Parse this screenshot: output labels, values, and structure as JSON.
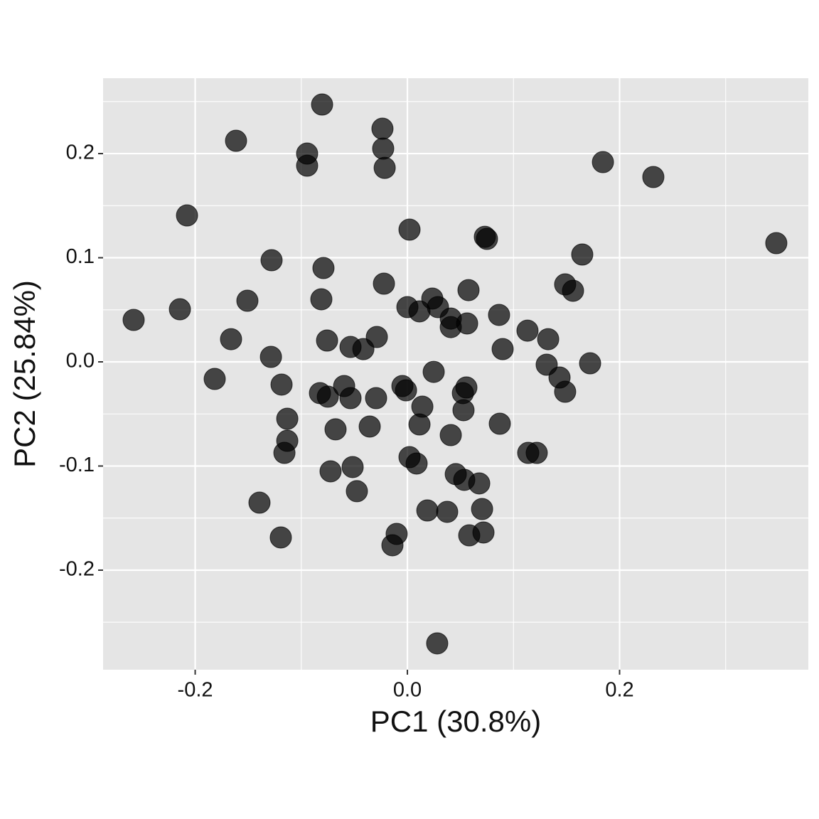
{
  "chart_data": {
    "type": "scatter",
    "x_label": "PC1 (30.8%)",
    "y_label": "PC2 (25.84%)",
    "x": [
      -0.0804,
      -0.1615,
      -0.0945,
      -0.0945,
      -0.0235,
      -0.0228,
      -0.0214,
      0.1843,
      0.2318,
      0.3477,
      -0.2077,
      0.002,
      0.073,
      0.075,
      0.1648,
      -0.128,
      -0.0791,
      -0.0221,
      0.1487,
      0.1561,
      0.0576,
      -0.1508,
      -0.0811,
      0.0235,
      0.0288,
      0.0,
      0.0114,
      0.0409,
      0.0409,
      0.0563,
      0.0864,
      -0.258,
      -0.2144,
      -0.1662,
      -0.0757,
      -0.0288,
      -0.0536,
      -0.0415,
      0.1132,
      0.1327,
      0.0898,
      -0.1286,
      -0.1816,
      0.0248,
      0.1722,
      0.1313,
      0.1434,
      0.1487,
      -0.1186,
      -0.0596,
      -0.0824,
      -0.075,
      -0.0536,
      -0.0295,
      -0.0047,
      -0.0013,
      0.0556,
      0.0523,
      0.0141,
      0.0529,
      -0.1132,
      -0.0677,
      -0.0355,
      0.0114,
      0.0409,
      0.0871,
      -0.1132,
      -0.1159,
      0.002,
      0.0087,
      0.1139,
      0.1219,
      -0.0724,
      -0.0516,
      -0.0476,
      0.0456,
      0.0536,
      0.0677,
      -0.1394,
      0.0188,
      0.0375,
      0.0704,
      -0.1193,
      -0.0101,
      -0.0141,
      0.0583,
      0.0717,
      0.0281
    ],
    "y": [
      0.2471,
      0.2123,
      0.2,
      0.1884,
      0.2239,
      0.2048,
      0.1863,
      0.1918,
      0.1775,
      0.114,
      0.1406,
      0.127,
      0.1201,
      0.1181,
      0.1031,
      0.0976,
      0.0901,
      0.0751,
      0.0744,
      0.0683,
      0.0689,
      0.0587,
      0.0601,
      0.0608,
      0.0526,
      0.0526,
      0.0485,
      0.0416,
      0.0334,
      0.0369,
      0.0451,
      0.0403,
      0.0505,
      0.0218,
      0.0205,
      0.0239,
      0.0143,
      0.0123,
      0.03,
      0.0218,
      0.0123,
      0.0048,
      -0.0164,
      -0.0096,
      -0.0014,
      -0.0027,
      -0.015,
      -0.0287,
      -0.0218,
      -0.0232,
      -0.03,
      -0.0334,
      -0.0348,
      -0.0348,
      -0.0232,
      -0.0273,
      -0.0246,
      -0.03,
      -0.043,
      -0.0464,
      -0.0546,
      -0.0648,
      -0.0621,
      -0.0601,
      -0.0703,
      -0.0594,
      -0.0758,
      -0.0874,
      -0.0915,
      -0.0976,
      -0.0874,
      -0.0874,
      -0.1051,
      -0.101,
      -0.1242,
      -0.1078,
      -0.1133,
      -0.1167,
      -0.1352,
      -0.1427,
      -0.144,
      -0.1413,
      -0.1686,
      -0.1652,
      -0.1761,
      -0.1666,
      -0.1638,
      -0.2703
    ],
    "color": "#000000",
    "opacity": 0.7,
    "xlim": [
      -0.2868,
      0.3779
    ],
    "ylim": [
      -0.2956,
      0.2724
    ],
    "xticks": [
      -0.2,
      {
        "value": 0,
        "label": "0.0"
      },
      0.2
    ],
    "yticks": [
      -0.2,
      -0.1,
      {
        "value": 0,
        "label": "0.0"
      },
      0.1,
      0.2
    ],
    "minor_xticks": [
      -0.1,
      0.1,
      0.3
    ],
    "minor_yticks": [
      -0.25,
      -0.15,
      -0.05,
      0.05,
      0.15,
      0.25
    ],
    "grid": true
  }
}
